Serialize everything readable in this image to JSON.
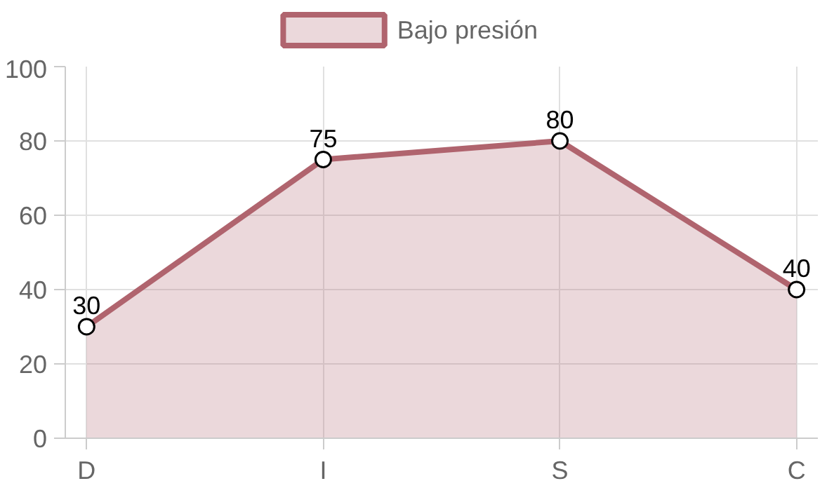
{
  "chart_data": {
    "type": "area",
    "categories": [
      "D",
      "I",
      "S",
      "C"
    ],
    "series": [
      {
        "name": "Bajo presión",
        "color": "#b0646e",
        "values": [
          30,
          75,
          80,
          40
        ]
      }
    ],
    "ylim": [
      0,
      100
    ],
    "yticks": [
      0,
      20,
      40,
      60,
      80,
      100
    ],
    "grid": true,
    "legend": "top",
    "marker": "circle",
    "data_labels": true
  }
}
